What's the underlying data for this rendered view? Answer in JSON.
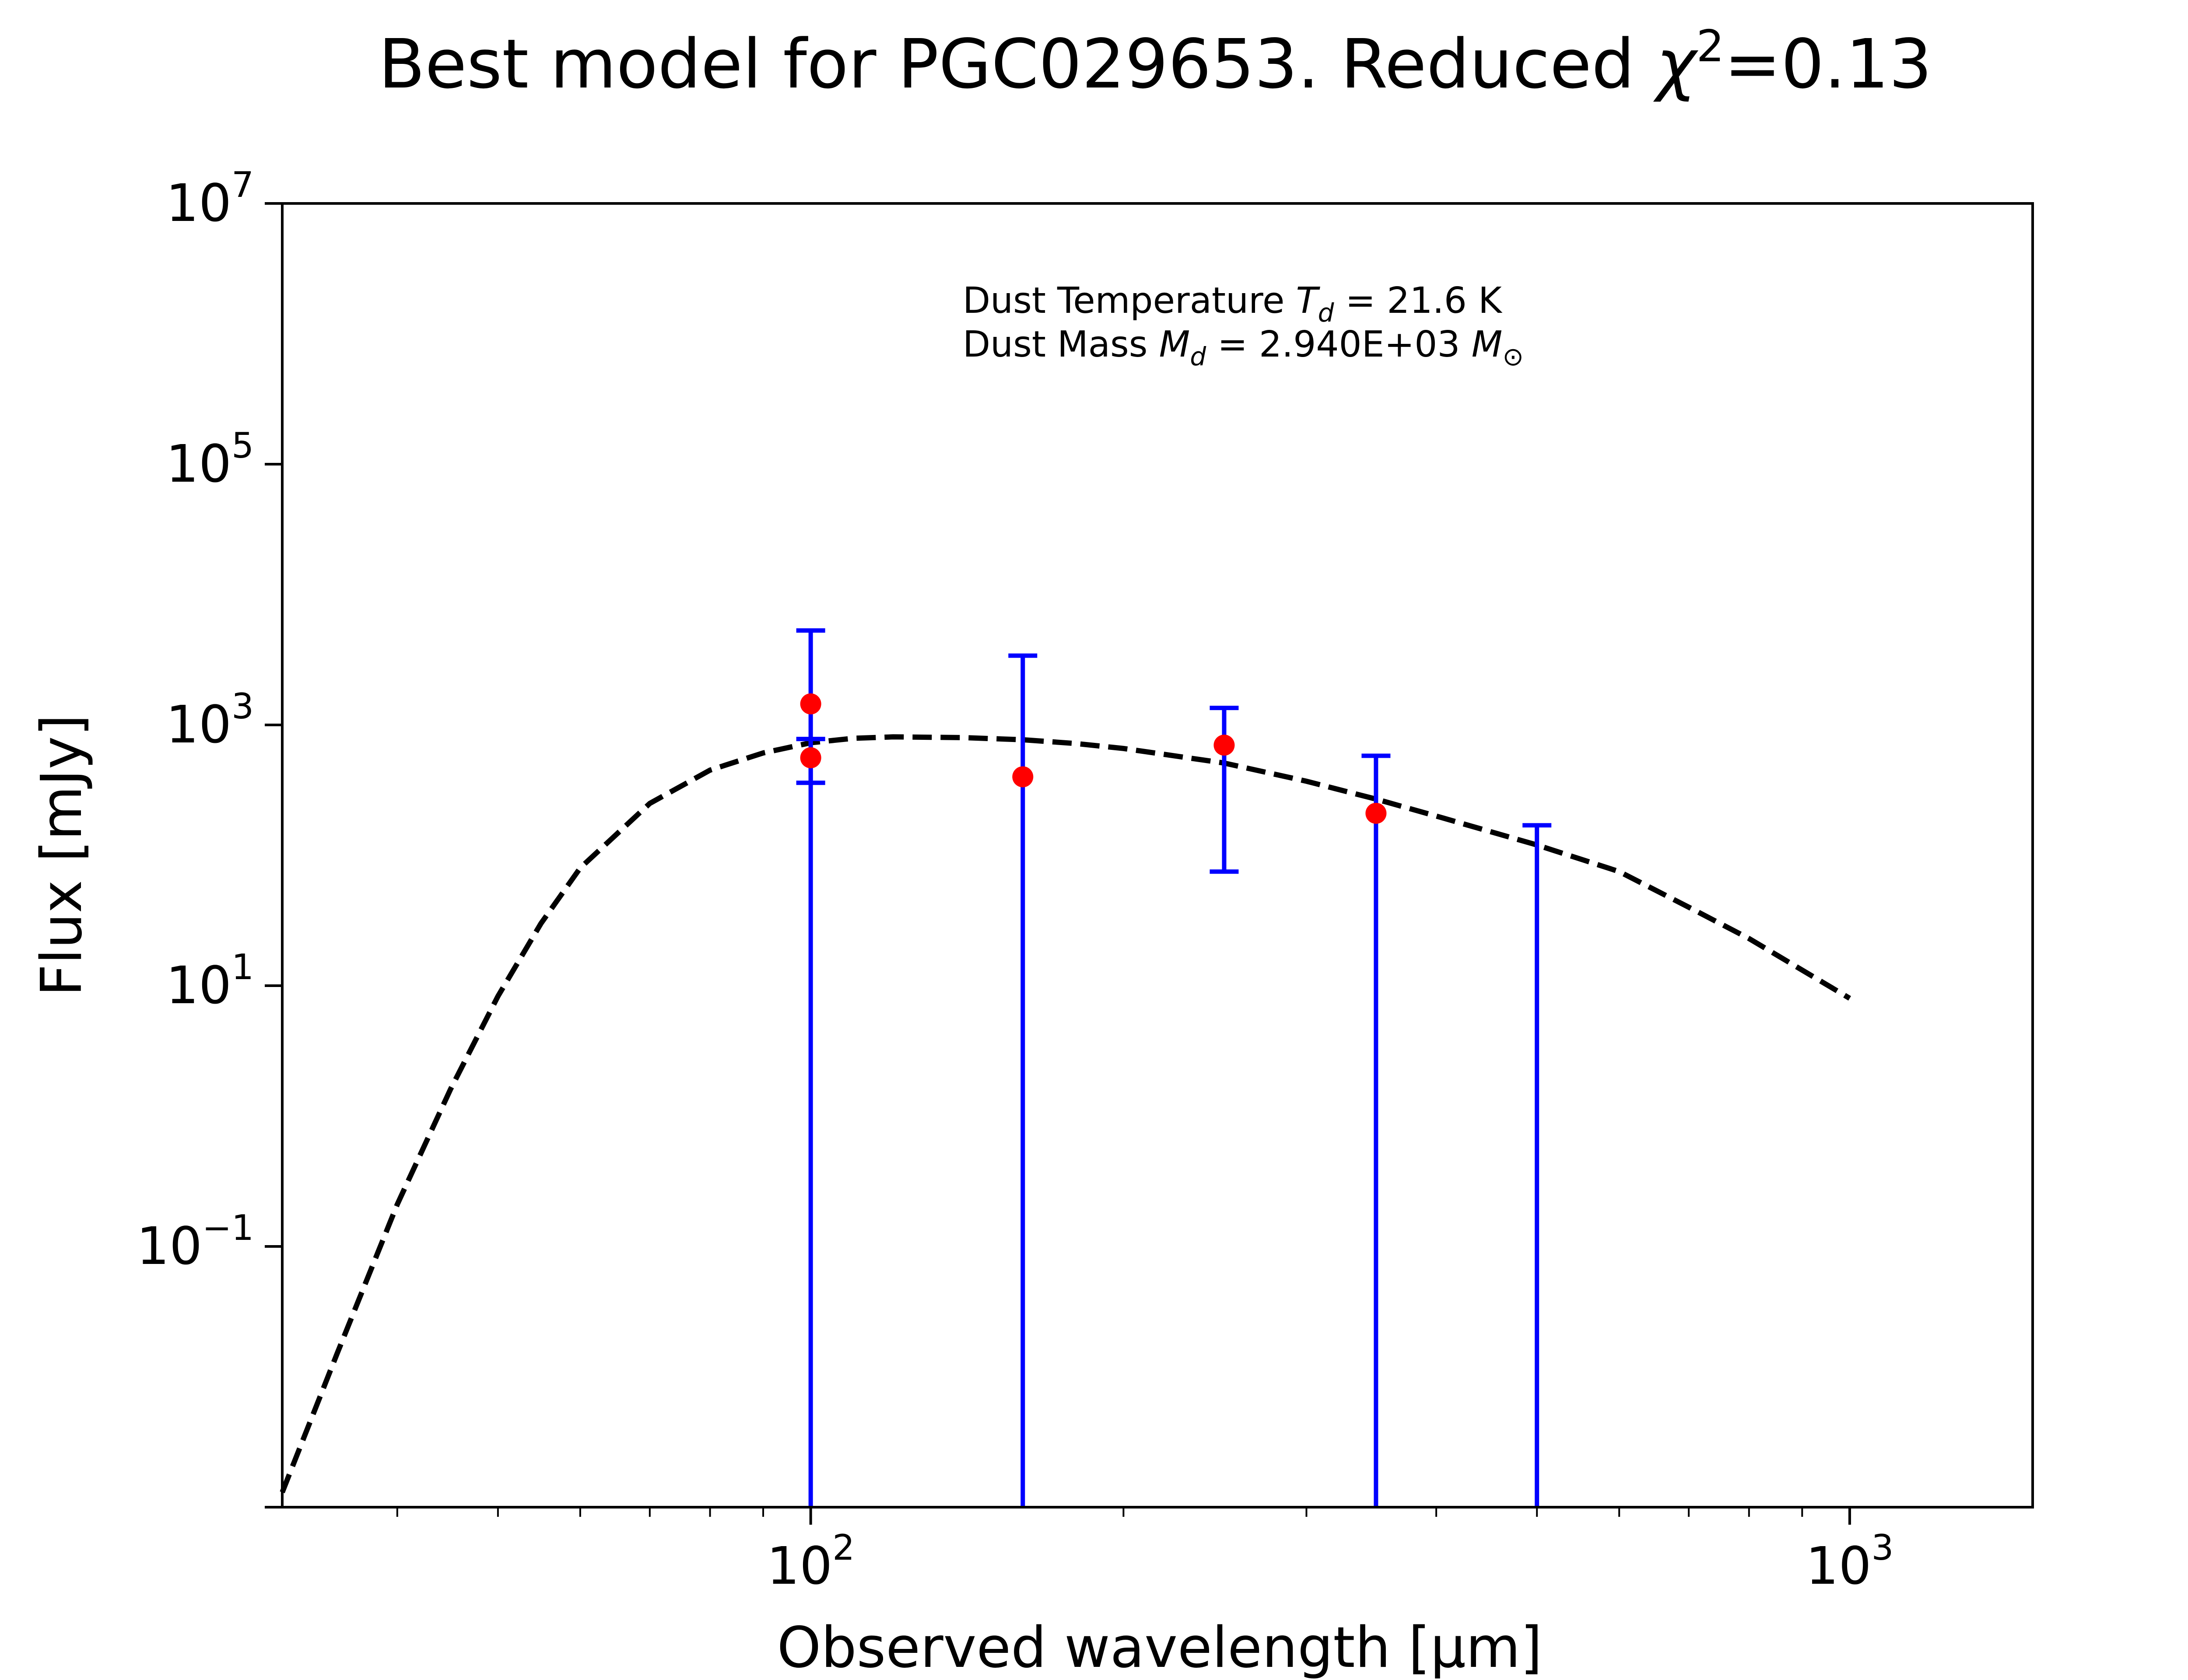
{
  "chart_data": {
    "type": "scatter",
    "title_prefix": "Best model for PGC029653. Reduced ",
    "title_symbol": "χ",
    "title_exponent": "2",
    "title_suffix": "=0.13",
    "xlabel": "Observed wavelength [μm]",
    "ylabel": "Flux [mJy]",
    "xscale": "log",
    "yscale": "log",
    "xlim": [
      31,
      1500
    ],
    "ylim": [
      0.001,
      10000000
    ],
    "x_ticks": [
      {
        "value": 100,
        "base": "10",
        "exp": "2"
      },
      {
        "value": 1000,
        "base": "10",
        "exp": "3"
      }
    ],
    "y_ticks": [
      {
        "value": 0.1,
        "base": "10",
        "exp": "−1"
      },
      {
        "value": 10,
        "base": "10",
        "exp": "1"
      },
      {
        "value": 1000,
        "base": "10",
        "exp": "3"
      },
      {
        "value": 100000,
        "base": "10",
        "exp": "5"
      },
      {
        "value": 10000000,
        "base": "10",
        "exp": "7"
      }
    ],
    "annotation": {
      "line1_prefix": "Dust Temperature ",
      "line1_symbol": "T",
      "line1_sub": "d",
      "line1_suffix": " = 21.6 K",
      "line2_prefix": "Dust Mass ",
      "line2_symbol": "M",
      "line2_sub": "d",
      "line2_mid": " = 2.940E+03 ",
      "line2_unit": "M",
      "line2_unit_sub": "⊙"
    },
    "series": [
      {
        "kind": "model",
        "style": "dashed",
        "color": "#000000",
        "x": [
          31,
          35,
          40,
          45,
          50,
          55,
          60,
          70,
          80,
          90,
          100,
          110,
          120,
          140,
          160,
          180,
          200,
          250,
          300,
          350,
          400,
          500,
          600,
          700,
          800,
          1000
        ],
        "y": [
          0.0013,
          0.015,
          0.21,
          1.6,
          8.3,
          30,
          80,
          250,
          450,
          610,
          730,
          790,
          810,
          800,
          770,
          720,
          660,
          510,
          370,
          270,
          200,
          120,
          75,
          40,
          23,
          8
        ]
      },
      {
        "kind": "observed",
        "color": "#ff0000",
        "error_color": "#0000ff",
        "points": [
          {
            "x": 100,
            "y": 1450,
            "yerr_low": 0.001,
            "yerr_high": 5300
          },
          {
            "x": 100,
            "y": 560,
            "yerr_low": 360,
            "yerr_high": 780
          },
          {
            "x": 160,
            "y": 400,
            "yerr_low": 0.001,
            "yerr_high": 3400
          },
          {
            "x": 250,
            "y": 700,
            "yerr_low": 75,
            "yerr_high": 1350
          },
          {
            "x": 350,
            "y": 210,
            "yerr_low": 0.001,
            "yerr_high": 580
          },
          {
            "x": 500,
            "y": null,
            "yerr_low": 0.001,
            "yerr_high": 170
          }
        ]
      }
    ]
  }
}
